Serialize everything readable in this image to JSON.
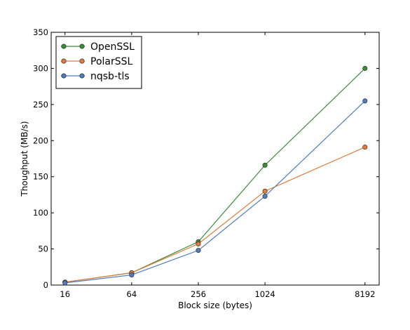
{
  "chart_data": {
    "type": "line",
    "title": "",
    "xlabel": "Block size (bytes)",
    "ylabel": "Thoughput (MB/s)",
    "x_scale": "log2",
    "categories": [
      "16",
      "64",
      "256",
      "1024",
      "8192"
    ],
    "x": [
      16,
      64,
      256,
      1024,
      8192
    ],
    "xlim": [
      12,
      11000
    ],
    "ylim": [
      0,
      350
    ],
    "y_ticks": [
      "0",
      "50",
      "100",
      "150",
      "200",
      "250",
      "300",
      "350"
    ],
    "y_tick_values": [
      0,
      50,
      100,
      150,
      200,
      250,
      300,
      350
    ],
    "grid": false,
    "legend_position": "top-left",
    "series": [
      {
        "name": "OpenSSL",
        "color": "#3a8c3a",
        "values": [
          4,
          17,
          60,
          166,
          300
        ]
      },
      {
        "name": "PolarSSL",
        "color": "#e07b39",
        "values": [
          4,
          17,
          57,
          130,
          191
        ]
      },
      {
        "name": "nqsb-tls",
        "color": "#4f7bbf",
        "values": [
          3,
          14,
          48,
          123,
          255
        ]
      }
    ]
  }
}
